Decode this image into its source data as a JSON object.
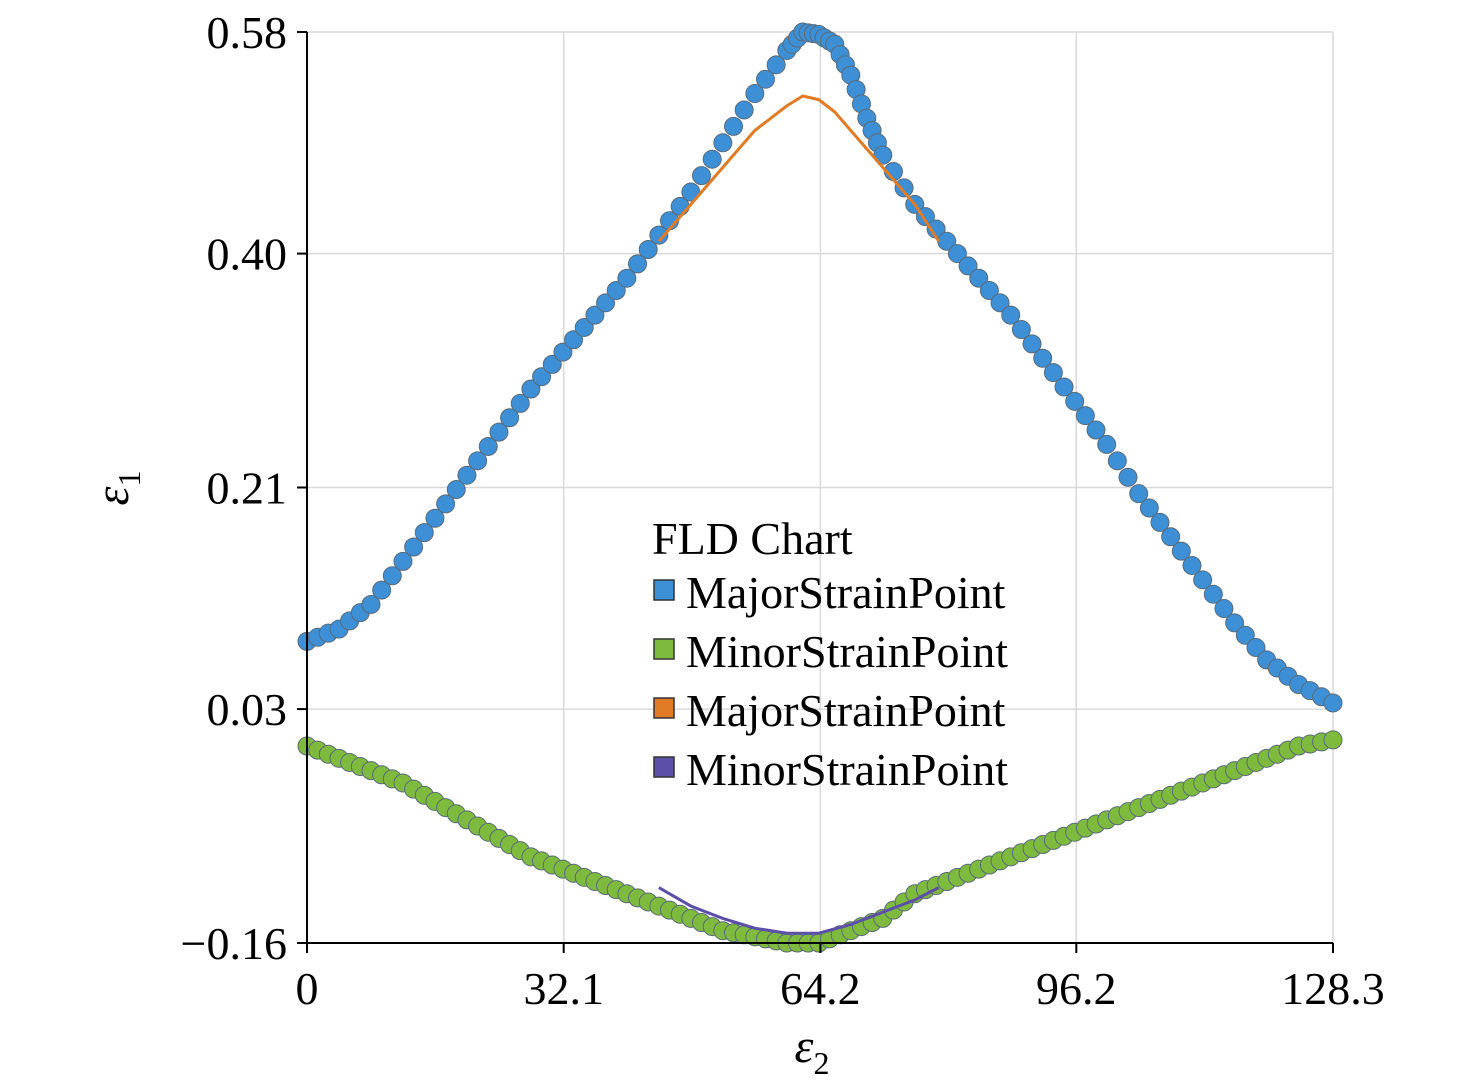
{
  "chart_data": {
    "type": "scatter",
    "legend": {
      "title": "FLD Chart",
      "placement": "center-right",
      "entries": [
        {
          "label": "MajorStrainPoint",
          "color": "#3d8fd6",
          "kind": "scatter"
        },
        {
          "label": "MinorStrainPoint",
          "color": "#7dba3e",
          "kind": "scatter"
        },
        {
          "label": "MajorStrainPoint",
          "color": "#e07b26",
          "kind": "line"
        },
        {
          "label": "MinorStrainPoint",
          "color": "#5b4fa8",
          "kind": "line"
        }
      ]
    },
    "xlabel": {
      "symbol": "ε",
      "subscript": "2"
    },
    "ylabel": {
      "symbol": "ε",
      "subscript": "1"
    },
    "xlim": [
      0,
      128.3
    ],
    "ylim": [
      -0.16,
      0.58
    ],
    "xticks": [
      0,
      32.1,
      64.2,
      96.2,
      128.3
    ],
    "xtick_labels": [
      "0",
      "32.1",
      "64.2",
      "96.2",
      "128.3"
    ],
    "yticks": [
      -0.16,
      0.03,
      0.21,
      0.4,
      0.58
    ],
    "ytick_labels": [
      "−0.16",
      "0.03",
      "0.21",
      "0.40",
      "0.58"
    ],
    "grid": true,
    "series": [
      {
        "name": "MajorStrainPoint",
        "kind": "scatter",
        "color": "#3d8fd6",
        "points": [
          [
            0,
            0.085
          ],
          [
            4,
            0.095
          ],
          [
            8,
            0.115
          ],
          [
            12,
            0.15
          ],
          [
            16,
            0.185
          ],
          [
            20,
            0.22
          ],
          [
            24,
            0.255
          ],
          [
            28,
            0.29
          ],
          [
            32,
            0.32
          ],
          [
            36,
            0.35
          ],
          [
            40,
            0.38
          ],
          [
            44,
            0.415
          ],
          [
            48,
            0.45
          ],
          [
            52,
            0.49
          ],
          [
            56,
            0.53
          ],
          [
            60,
            0.565
          ],
          [
            62,
            0.58
          ],
          [
            64,
            0.578
          ],
          [
            66,
            0.57
          ],
          [
            68,
            0.545
          ],
          [
            70,
            0.51
          ],
          [
            72,
            0.48
          ],
          [
            76,
            0.44
          ],
          [
            80,
            0.41
          ],
          [
            84,
            0.38
          ],
          [
            88,
            0.35
          ],
          [
            92,
            0.315
          ],
          [
            96,
            0.28
          ],
          [
            100,
            0.245
          ],
          [
            104,
            0.205
          ],
          [
            108,
            0.17
          ],
          [
            112,
            0.135
          ],
          [
            116,
            0.1
          ],
          [
            120,
            0.07
          ],
          [
            124,
            0.05
          ],
          [
            128.3,
            0.035
          ]
        ]
      },
      {
        "name": "MinorStrainPoint",
        "kind": "scatter",
        "color": "#7dba3e",
        "points": [
          [
            0,
            0.0
          ],
          [
            4,
            -0.01
          ],
          [
            8,
            -0.02
          ],
          [
            12,
            -0.03
          ],
          [
            16,
            -0.045
          ],
          [
            20,
            -0.06
          ],
          [
            24,
            -0.075
          ],
          [
            28,
            -0.09
          ],
          [
            32,
            -0.1
          ],
          [
            36,
            -0.11
          ],
          [
            40,
            -0.12
          ],
          [
            44,
            -0.13
          ],
          [
            48,
            -0.14
          ],
          [
            52,
            -0.15
          ],
          [
            56,
            -0.155
          ],
          [
            60,
            -0.16
          ],
          [
            64,
            -0.16
          ],
          [
            68,
            -0.15
          ],
          [
            72,
            -0.14
          ],
          [
            76,
            -0.12
          ],
          [
            80,
            -0.11
          ],
          [
            84,
            -0.1
          ],
          [
            88,
            -0.09
          ],
          [
            92,
            -0.08
          ],
          [
            96,
            -0.07
          ],
          [
            100,
            -0.06
          ],
          [
            104,
            -0.05
          ],
          [
            108,
            -0.04
          ],
          [
            112,
            -0.03
          ],
          [
            116,
            -0.02
          ],
          [
            120,
            -0.01
          ],
          [
            124,
            0.0
          ],
          [
            128.3,
            0.005
          ]
        ]
      },
      {
        "name": "MajorStrainPoint",
        "kind": "line",
        "color": "#e07b26",
        "points": [
          [
            44,
            0.41
          ],
          [
            48,
            0.44
          ],
          [
            52,
            0.47
          ],
          [
            56,
            0.5
          ],
          [
            60,
            0.52
          ],
          [
            62,
            0.528
          ],
          [
            64,
            0.525
          ],
          [
            66,
            0.515
          ],
          [
            68,
            0.5
          ],
          [
            72,
            0.47
          ],
          [
            76,
            0.44
          ],
          [
            79,
            0.41
          ]
        ]
      },
      {
        "name": "MinorStrainPoint",
        "kind": "line",
        "color": "#5b4fa8",
        "points": [
          [
            44,
            -0.115
          ],
          [
            48,
            -0.13
          ],
          [
            52,
            -0.14
          ],
          [
            56,
            -0.148
          ],
          [
            60,
            -0.152
          ],
          [
            64,
            -0.152
          ],
          [
            68,
            -0.145
          ],
          [
            72,
            -0.135
          ],
          [
            76,
            -0.125
          ],
          [
            79,
            -0.115
          ]
        ]
      }
    ]
  }
}
